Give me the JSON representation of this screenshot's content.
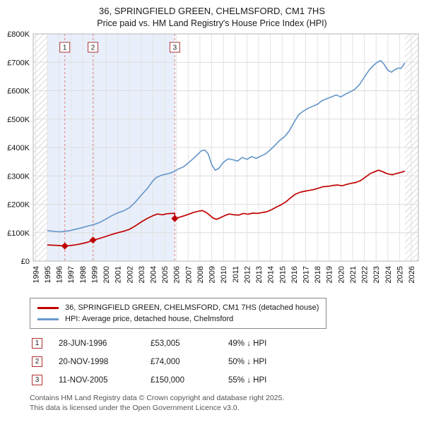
{
  "page": {
    "title": "36, SPRINGFIELD GREEN, CHELMSFORD, CM1 7HS",
    "subtitle": "Price paid vs. HM Land Registry's House Price Index (HPI)"
  },
  "chart_data": {
    "type": "line",
    "x_range": [
      1993.8,
      2026.6
    ],
    "ylim": [
      0,
      800000
    ],
    "y_tick_values": [
      0,
      100000,
      200000,
      300000,
      400000,
      500000,
      600000,
      700000,
      800000
    ],
    "y_tick_labels": [
      "£0",
      "£100K",
      "£200K",
      "£300K",
      "£400K",
      "£500K",
      "£600K",
      "£700K",
      "£800K"
    ],
    "x_tick_labels": [
      "1994",
      "1995",
      "1996",
      "1997",
      "1998",
      "1999",
      "2000",
      "2001",
      "2002",
      "2003",
      "2004",
      "2005",
      "2006",
      "2007",
      "2008",
      "2009",
      "2010",
      "2011",
      "2012",
      "2013",
      "2014",
      "2015",
      "2016",
      "2017",
      "2018",
      "2019",
      "2020",
      "2021",
      "2022",
      "2023",
      "2024",
      "2025",
      "2026"
    ],
    "grid_color": "#dcdcdc",
    "dashed_line_color": "#e08080",
    "shaded_region": {
      "from": 1995.0,
      "to": 2005.86,
      "color": "#e9effa"
    },
    "hatches": [
      [
        1993.8,
        1995.0
      ],
      [
        2025.45,
        2026.6
      ]
    ],
    "series": [
      {
        "name": "36, SPRINGFIELD GREEN, CHELMSFORD, CM1 7HS (detached house)",
        "color": "#c00000",
        "x": [
          1995.0,
          1995.5,
          1996.0,
          1996.49,
          1997.0,
          1997.5,
          1998.0,
          1998.5,
          1998.89,
          1999.4,
          2000.0,
          2000.5,
          2001.0,
          2001.5,
          2002.0,
          2002.5,
          2003.0,
          2003.5,
          2004.0,
          2004.4,
          2004.8,
          2005.2,
          2005.6,
          2005.85,
          2005.87,
          2006.3,
          2006.7,
          2007.1,
          2007.5,
          2007.9,
          2008.2,
          2008.5,
          2008.8,
          2009.1,
          2009.4,
          2009.7,
          2010.1,
          2010.5,
          2010.9,
          2011.3,
          2011.7,
          2012.1,
          2012.5,
          2012.9,
          2013.3,
          2013.7,
          2014.1,
          2014.5,
          2014.9,
          2015.3,
          2015.7,
          2016.1,
          2016.5,
          2016.9,
          2017.3,
          2017.7,
          2018.1,
          2018.5,
          2018.9,
          2019.3,
          2019.7,
          2020.1,
          2020.5,
          2020.9,
          2021.3,
          2021.7,
          2022.1,
          2022.5,
          2022.9,
          2023.2,
          2023.5,
          2023.8,
          2024.1,
          2024.4,
          2024.7,
          2025.0,
          2025.25,
          2025.45
        ],
        "values": [
          57000,
          56000,
          55000,
          53005,
          55000,
          58000,
          62000,
          67000,
          74000,
          79000,
          87000,
          94000,
          100000,
          105000,
          112000,
          124000,
          138000,
          150000,
          160000,
          166000,
          163000,
          167000,
          168000,
          168000,
          150000,
          155000,
          160000,
          166000,
          172000,
          176000,
          178000,
          172000,
          163000,
          152000,
          147000,
          152000,
          160000,
          166000,
          163000,
          162000,
          168000,
          165000,
          169000,
          168000,
          171000,
          174000,
          181000,
          190000,
          198000,
          208000,
          222000,
          235000,
          242000,
          246000,
          249000,
          252000,
          257000,
          262000,
          263000,
          266000,
          268000,
          265000,
          270000,
          274000,
          277000,
          284000,
          296000,
          308000,
          315000,
          320000,
          316000,
          310000,
          306000,
          304000,
          308000,
          311000,
          314000,
          317000
        ]
      },
      {
        "name": "HPI: Average price, detached house, Chelmsford",
        "color": "#6a99cc",
        "x": [
          1995.0,
          1995.5,
          1996.0,
          1996.5,
          1997.0,
          1997.5,
          1998.0,
          1998.5,
          1999.0,
          1999.5,
          2000.0,
          2000.5,
          2001.0,
          2001.5,
          2002.0,
          2002.5,
          2003.0,
          2003.5,
          2004.0,
          2004.3,
          2004.7,
          2005.0,
          2005.4,
          2005.8,
          2006.2,
          2006.6,
          2007.0,
          2007.4,
          2007.8,
          2008.1,
          2008.4,
          2008.7,
          2009.0,
          2009.3,
          2009.6,
          2010.0,
          2010.4,
          2010.8,
          2011.2,
          2011.6,
          2012.0,
          2012.4,
          2012.8,
          2013.2,
          2013.6,
          2014.0,
          2014.4,
          2014.8,
          2015.2,
          2015.6,
          2016.0,
          2016.4,
          2016.8,
          2017.2,
          2017.6,
          2018.0,
          2018.4,
          2018.8,
          2019.2,
          2019.6,
          2020.0,
          2020.4,
          2020.8,
          2021.2,
          2021.6,
          2022.0,
          2022.4,
          2022.8,
          2023.1,
          2023.4,
          2023.7,
          2024.0,
          2024.3,
          2024.6,
          2024.9,
          2025.1,
          2025.3,
          2025.45
        ],
        "values": [
          107000,
          105000,
          103000,
          104500,
          108000,
          113000,
          118000,
          124000,
          129000,
          137000,
          148000,
          160000,
          170000,
          177000,
          188000,
          208000,
          232000,
          255000,
          283000,
          295000,
          302000,
          305000,
          309000,
          315000,
          325000,
          332000,
          345000,
          360000,
          375000,
          388000,
          391000,
          378000,
          340000,
          320000,
          326000,
          348000,
          360000,
          357000,
          352000,
          365000,
          358000,
          368000,
          362000,
          370000,
          378000,
          392000,
          408000,
          425000,
          438000,
          458000,
          488000,
          515000,
          528000,
          538000,
          545000,
          552000,
          565000,
          572000,
          578000,
          585000,
          578000,
          588000,
          596000,
          605000,
          622000,
          648000,
          672000,
          690000,
          700000,
          706000,
          692000,
          672000,
          665000,
          674000,
          680000,
          678000,
          688000,
          698000
        ]
      }
    ],
    "sales": [
      {
        "num": "1",
        "x": 1996.49,
        "price": 53005
      },
      {
        "num": "2",
        "x": 1998.89,
        "price": 74000
      },
      {
        "num": "3",
        "x": 2005.86,
        "price": 150000
      }
    ]
  },
  "legend": {
    "items": [
      {
        "label": "36, SPRINGFIELD GREEN, CHELMSFORD, CM1 7HS (detached house)"
      },
      {
        "label": "HPI: Average price, detached house, Chelmsford"
      }
    ]
  },
  "transactions": {
    "rows": [
      {
        "num": "1",
        "date": "28-JUN-1996",
        "price": "£53,005",
        "hpi": "49% ↓ HPI"
      },
      {
        "num": "2",
        "date": "20-NOV-1998",
        "price": "£74,000",
        "hpi": "50% ↓ HPI"
      },
      {
        "num": "3",
        "date": "11-NOV-2005",
        "price": "£150,000",
        "hpi": "55% ↓ HPI"
      }
    ]
  },
  "footer": {
    "line1": "Contains HM Land Registry data © Crown copyright and database right 2025.",
    "line2": "This data is licensed under the Open Government Licence v3.0."
  }
}
